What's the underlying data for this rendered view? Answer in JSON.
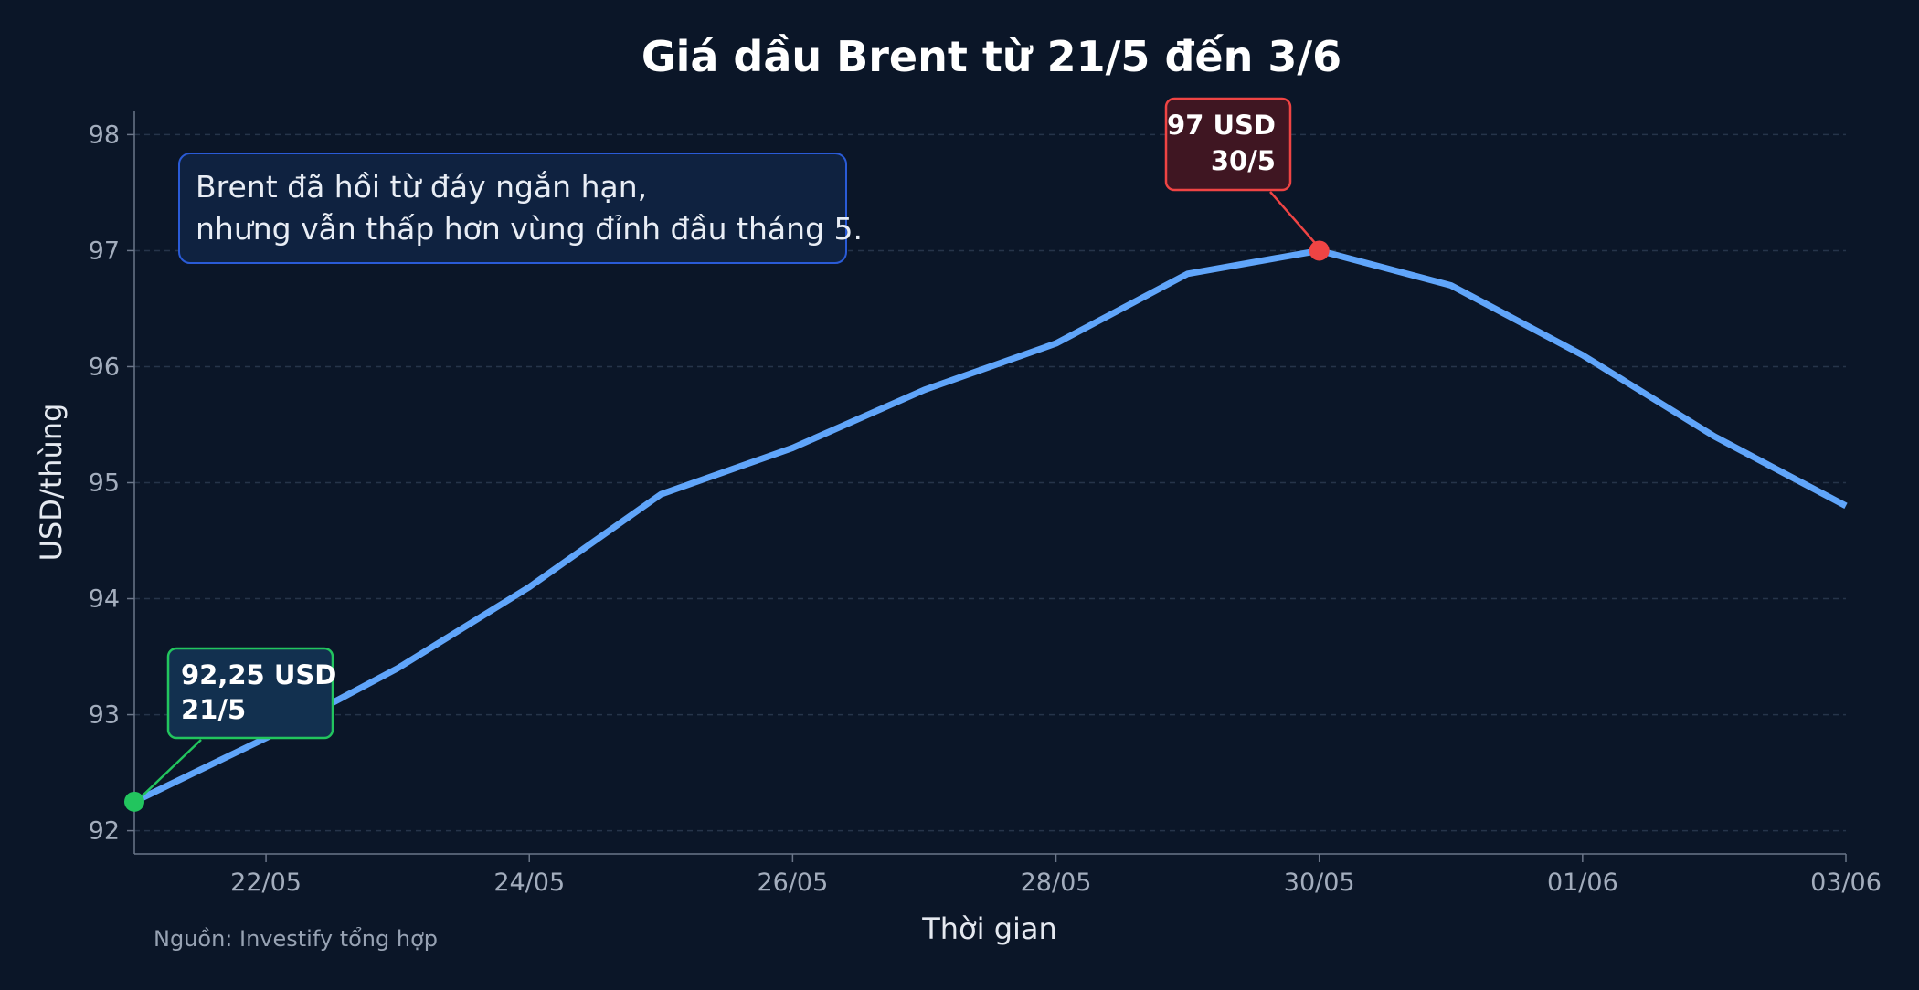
{
  "chart_data": {
    "type": "line",
    "title": "Giá dầu Brent từ 21/5 đến 3/6",
    "xlabel": "Thời gian",
    "ylabel": "USD/thùng",
    "x": [
      "21/05",
      "22/05",
      "23/05",
      "24/05",
      "25/05",
      "26/05",
      "27/05",
      "28/05",
      "29/05",
      "30/05",
      "31/05",
      "01/06",
      "02/06",
      "03/06"
    ],
    "xticks": [
      "22/05",
      "24/05",
      "26/05",
      "28/05",
      "30/05",
      "01/06",
      "03/06"
    ],
    "yticks": [
      "92",
      "93",
      "94",
      "95",
      "96",
      "97",
      "98"
    ],
    "ylim": [
      91.8,
      98.2
    ],
    "grid": true,
    "series": [
      {
        "values": [
          92.25,
          92.8,
          93.4,
          94.1,
          94.9,
          95.3,
          95.8,
          96.2,
          96.8,
          97.0,
          96.7,
          96.1,
          95.4,
          94.8
        ],
        "color": "#60a5fa"
      }
    ],
    "annotations": {
      "info_box": {
        "line1": "Brent đã hồi từ đáy ngắn hạn,",
        "line2": "nhưng vẫn thấp hơn vùng đỉnh đầu tháng 5."
      },
      "low_point": {
        "index": 0,
        "line1": "92,25 USD",
        "line2": "21/5",
        "color": "#22c55e"
      },
      "high_point": {
        "index": 9,
        "line1": "97 USD",
        "line2": "30/5",
        "color": "#ef4444"
      }
    },
    "source": "Nguồn: Investify tổng hợp"
  }
}
